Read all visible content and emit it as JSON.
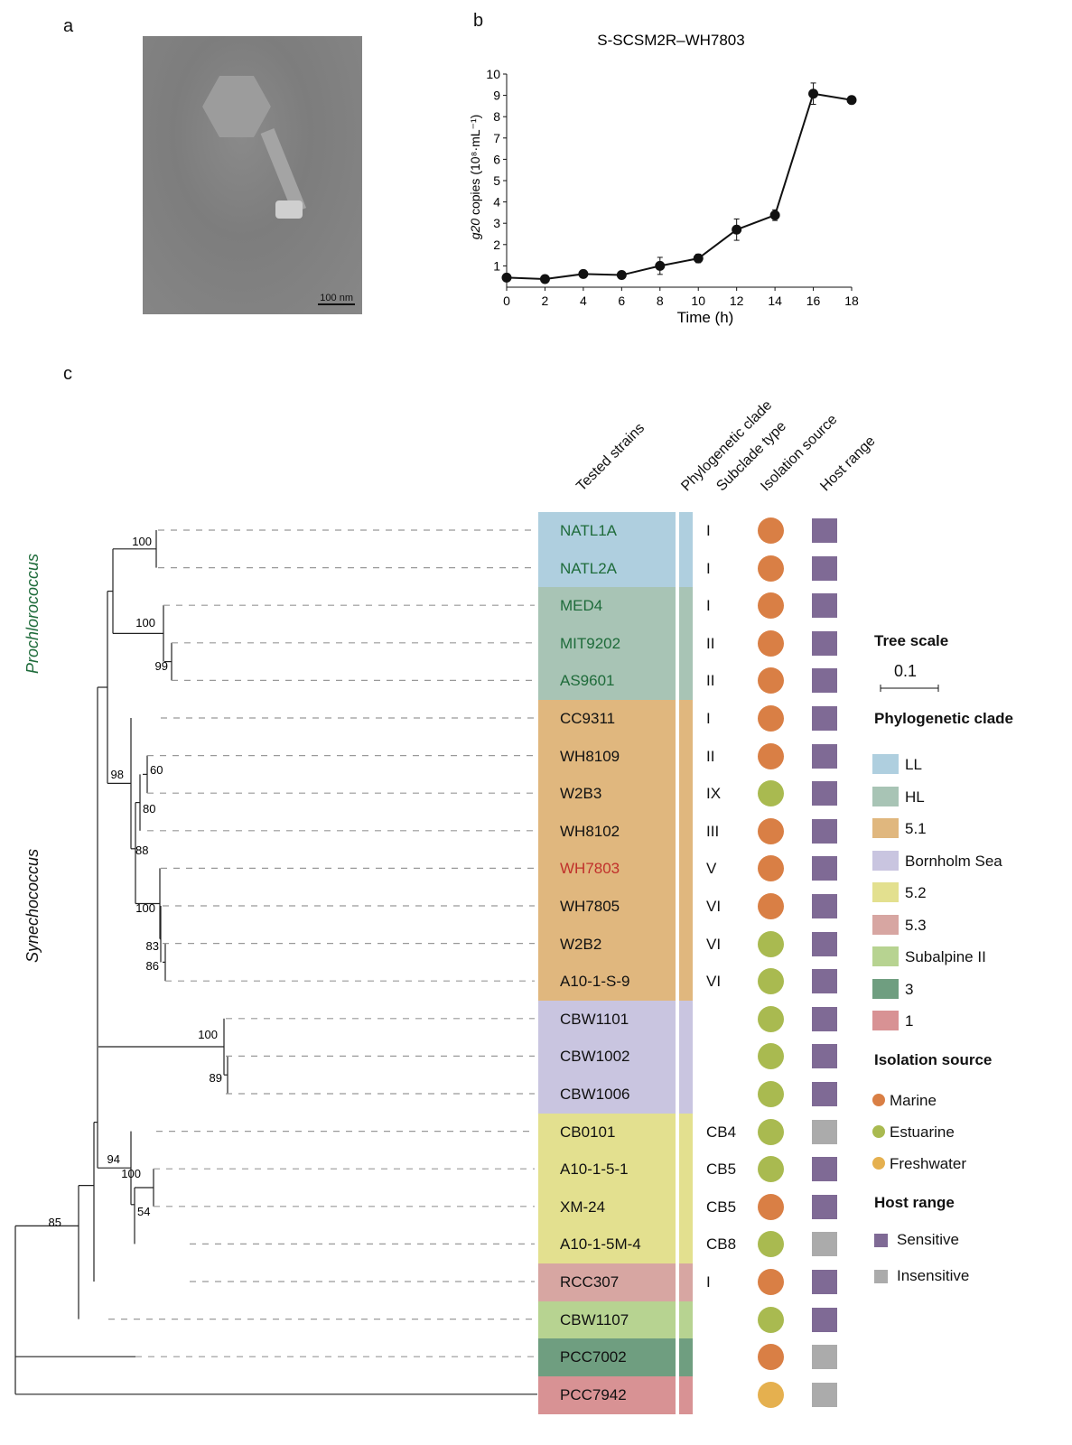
{
  "panels": {
    "a": "a",
    "b": "b",
    "c": "c"
  },
  "micrograph": {
    "scale_bar": "100 nm"
  },
  "chart_data": {
    "type": "line",
    "title": "S-SCSM2R–WH7803",
    "xlabel": "Time (h)",
    "ylabel_italic": "g20",
    "ylabel_rest": " copies (10⁸·mL⁻¹)",
    "x": [
      0,
      2,
      4,
      6,
      8,
      10,
      12,
      14,
      16,
      18
    ],
    "y": [
      0.45,
      0.38,
      0.62,
      0.57,
      1.0,
      1.35,
      2.7,
      3.38,
      9.08,
      8.78
    ],
    "error": [
      0.05,
      0.05,
      0.06,
      0.05,
      0.4,
      0.2,
      0.5,
      0.25,
      0.5,
      0.18
    ],
    "xlim": [
      0,
      18
    ],
    "ylim": [
      0,
      10
    ],
    "xticks": [
      "0",
      "2",
      "4",
      "6",
      "8",
      "10",
      "12",
      "14",
      "16",
      "18"
    ],
    "yticks": [
      "1",
      "2",
      "3",
      "4",
      "5",
      "6",
      "7",
      "8",
      "9",
      "10"
    ],
    "grid": false
  },
  "tree": {
    "column_headers": [
      "Tested strains",
      "Phylogenetic clade",
      "Subclade type",
      "Isolation source",
      "Host range"
    ],
    "genus_labels": {
      "prochlorococcus": "Prochlorococcus",
      "synechococcus": "Synechococcus"
    },
    "bootstrap": [
      "100",
      "100",
      "99",
      "98",
      "60",
      "80",
      "88",
      "100",
      "83",
      "86",
      "100",
      "89",
      "94",
      "100",
      "54",
      "85"
    ],
    "strains": [
      {
        "name": "NATL1A",
        "clade": "LL",
        "subclade": "I",
        "source": "Marine",
        "host": "Sensitive",
        "name_color": "#1e6b3a"
      },
      {
        "name": "NATL2A",
        "clade": "LL",
        "subclade": "I",
        "source": "Marine",
        "host": "Sensitive",
        "name_color": "#1e6b3a"
      },
      {
        "name": "MED4",
        "clade": "HL",
        "subclade": "I",
        "source": "Marine",
        "host": "Sensitive",
        "name_color": "#1e6b3a"
      },
      {
        "name": "MIT9202",
        "clade": "HL",
        "subclade": "II",
        "source": "Marine",
        "host": "Sensitive",
        "name_color": "#1e6b3a"
      },
      {
        "name": "AS9601",
        "clade": "HL",
        "subclade": "II",
        "source": "Marine",
        "host": "Sensitive",
        "name_color": "#1e6b3a"
      },
      {
        "name": "CC9311",
        "clade": "5.1",
        "subclade": "I",
        "source": "Marine",
        "host": "Sensitive",
        "name_color": "#111111"
      },
      {
        "name": "WH8109",
        "clade": "5.1",
        "subclade": "II",
        "source": "Marine",
        "host": "Sensitive",
        "name_color": "#111111"
      },
      {
        "name": "W2B3",
        "clade": "5.1",
        "subclade": "IX",
        "source": "Estuarine",
        "host": "Sensitive",
        "name_color": "#111111"
      },
      {
        "name": "WH8102",
        "clade": "5.1",
        "subclade": "III",
        "source": "Marine",
        "host": "Sensitive",
        "name_color": "#111111"
      },
      {
        "name": "WH7803",
        "clade": "5.1",
        "subclade": "V",
        "source": "Marine",
        "host": "Sensitive",
        "name_color": "#c0302b"
      },
      {
        "name": "WH7805",
        "clade": "5.1",
        "subclade": "VI",
        "source": "Marine",
        "host": "Sensitive",
        "name_color": "#111111"
      },
      {
        "name": "W2B2",
        "clade": "5.1",
        "subclade": "VI",
        "source": "Estuarine",
        "host": "Sensitive",
        "name_color": "#111111"
      },
      {
        "name": "A10-1-S-9",
        "clade": "5.1",
        "subclade": "VI",
        "source": "Estuarine",
        "host": "Sensitive",
        "name_color": "#111111"
      },
      {
        "name": "CBW1101",
        "clade": "Bornholm Sea",
        "subclade": "",
        "source": "Estuarine",
        "host": "Sensitive",
        "name_color": "#111111"
      },
      {
        "name": "CBW1002",
        "clade": "Bornholm Sea",
        "subclade": "",
        "source": "Estuarine",
        "host": "Sensitive",
        "name_color": "#111111"
      },
      {
        "name": "CBW1006",
        "clade": "Bornholm Sea",
        "subclade": "",
        "source": "Estuarine",
        "host": "Sensitive",
        "name_color": "#111111"
      },
      {
        "name": "CB0101",
        "clade": "5.2",
        "subclade": "CB4",
        "source": "Estuarine",
        "host": "Insensitive",
        "name_color": "#111111"
      },
      {
        "name": "A10-1-5-1",
        "clade": "5.2",
        "subclade": "CB5",
        "source": "Estuarine",
        "host": "Sensitive",
        "name_color": "#111111"
      },
      {
        "name": "XM-24",
        "clade": "5.2",
        "subclade": "CB5",
        "source": "Marine",
        "host": "Sensitive",
        "name_color": "#111111"
      },
      {
        "name": "A10-1-5M-4",
        "clade": "5.2",
        "subclade": "CB8",
        "source": "Estuarine",
        "host": "Insensitive",
        "name_color": "#111111"
      },
      {
        "name": "RCC307",
        "clade": "5.3",
        "subclade": "I",
        "source": "Marine",
        "host": "Sensitive",
        "name_color": "#111111"
      },
      {
        "name": "CBW1107",
        "clade": "Subalpine II",
        "subclade": "",
        "source": "Estuarine",
        "host": "Sensitive",
        "name_color": "#111111"
      },
      {
        "name": "PCC7002",
        "clade": "3",
        "subclade": "",
        "source": "Marine",
        "host": "Insensitive",
        "name_color": "#111111"
      },
      {
        "name": "PCC7942",
        "clade": "1",
        "subclade": "",
        "source": "Freshwater",
        "host": "Insensitive",
        "name_color": "#111111"
      }
    ]
  },
  "legend": {
    "tree_scale_title": "Tree scale",
    "tree_scale_value": "0.1",
    "clade_title": "Phylogenetic clade",
    "clades": [
      {
        "label": "LL",
        "color": "#afcfdf"
      },
      {
        "label": "HL",
        "color": "#a8c4b5"
      },
      {
        "label": "5.1",
        "color": "#e0b77e"
      },
      {
        "label": "Bornholm Sea",
        "color": "#c9c5e0"
      },
      {
        "label": "5.2",
        "color": "#e3e08f"
      },
      {
        "label": "5.3",
        "color": "#d7a6a2"
      },
      {
        "label": "Subalpine II",
        "color": "#b7d391"
      },
      {
        "label": "3",
        "color": "#6f9e80"
      },
      {
        "label": "1",
        "color": "#d89294"
      }
    ],
    "source_title": "Isolation source",
    "sources": [
      {
        "label": "Marine",
        "color": "#d97f45"
      },
      {
        "label": "Estuarine",
        "color": "#a9ba50"
      },
      {
        "label": "Freshwater",
        "color": "#e5b04f"
      }
    ],
    "host_title": "Host range",
    "hosts": [
      {
        "label": "Sensitive",
        "color": "#7f6a95"
      },
      {
        "label": "Insensitive",
        "color": "#ababab"
      }
    ]
  },
  "genus_colors": {
    "prochlorococcus": "#1e6b3a",
    "synechococcus": "#111111"
  }
}
